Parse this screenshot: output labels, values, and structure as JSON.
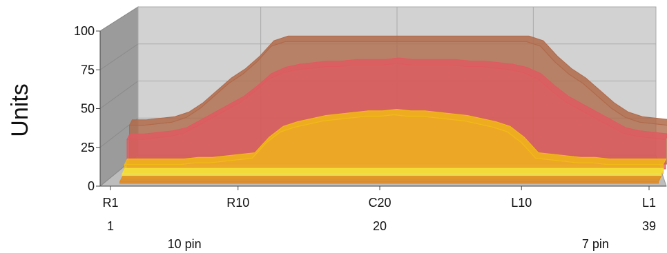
{
  "chart_data": {
    "type": "area",
    "title": "",
    "xlabel": "",
    "ylabel": "Units",
    "ylim": [
      0,
      100
    ],
    "y_ticks": [
      "0",
      "25",
      "50",
      "75",
      "100"
    ],
    "x_tick_labels": [
      "R1",
      "R10",
      "C20",
      "L10",
      "L1"
    ],
    "x_tick_positions": [
      1,
      10,
      20,
      30,
      39
    ],
    "x_index_labels": [
      "1",
      "20",
      "39"
    ],
    "x_index_positions": [
      1,
      20,
      39
    ],
    "x_annotations": [
      {
        "text": "10 pin",
        "x": 5
      },
      {
        "text": "7 pin",
        "x": 34
      }
    ],
    "x": [
      1,
      2,
      3,
      4,
      5,
      6,
      7,
      8,
      9,
      10,
      11,
      12,
      13,
      14,
      15,
      16,
      17,
      18,
      19,
      20,
      21,
      22,
      23,
      24,
      25,
      26,
      27,
      28,
      29,
      30,
      31,
      32,
      33,
      34,
      35,
      36,
      37,
      38,
      39
    ],
    "grid": true,
    "series": [
      {
        "color": "#b06a4a",
        "values": [
          25,
          25,
          26,
          27,
          30,
          36,
          44,
          52,
          58,
          66,
          76,
          79,
          79,
          79,
          79,
          79,
          79,
          79,
          79,
          79,
          79,
          79,
          79,
          79,
          79,
          79,
          79,
          79,
          79,
          76,
          66,
          58,
          52,
          44,
          36,
          30,
          27,
          26,
          25
        ]
      },
      {
        "color": "#df5a5f",
        "values": [
          19,
          19,
          20,
          21,
          23,
          28,
          33,
          38,
          43,
          50,
          58,
          62,
          64,
          65,
          66,
          66,
          67,
          67,
          67,
          68,
          67,
          67,
          67,
          67,
          66,
          66,
          65,
          64,
          62,
          58,
          50,
          43,
          38,
          33,
          28,
          23,
          21,
          20,
          19
        ]
      },
      {
        "color": "#f2bb16",
        "values": [
          6,
          6,
          6,
          6,
          6,
          7,
          7,
          8,
          9,
          10,
          20,
          27,
          30,
          32,
          34,
          35,
          36,
          37,
          37,
          38,
          37,
          37,
          36,
          35,
          34,
          32,
          30,
          27,
          20,
          10,
          9,
          8,
          7,
          7,
          6,
          6,
          6,
          6,
          6
        ]
      },
      {
        "color": "#f5e23a",
        "values": [
          3,
          3,
          3,
          3,
          3,
          3,
          3,
          3,
          3,
          3,
          3,
          3,
          3,
          3,
          3,
          3,
          3,
          3,
          3,
          3,
          3,
          3,
          3,
          3,
          3,
          3,
          3,
          3,
          3,
          3,
          3,
          3,
          3,
          3,
          3,
          3,
          3,
          3,
          3
        ]
      },
      {
        "color": "#e0891e",
        "values": [
          1,
          1,
          1,
          1,
          1,
          1,
          1,
          1,
          1,
          1,
          1,
          1,
          1,
          1,
          1,
          1,
          1,
          1,
          1,
          1,
          1,
          1,
          1,
          1,
          1,
          1,
          1,
          1,
          1,
          1,
          1,
          1,
          1,
          1,
          1,
          1,
          1,
          1,
          1
        ]
      }
    ]
  }
}
